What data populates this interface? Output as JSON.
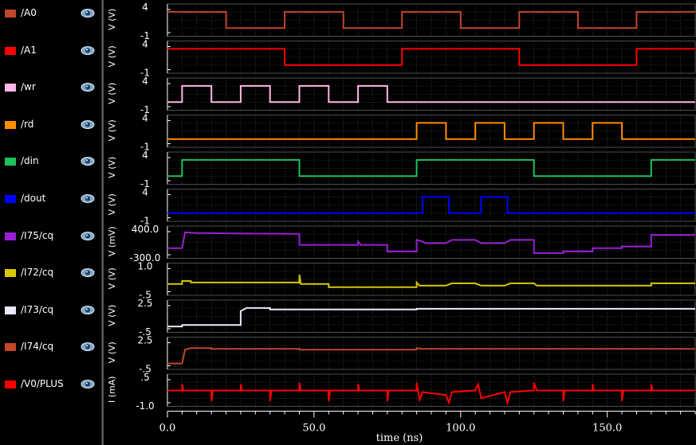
{
  "legend": [
    {
      "label": "/A0",
      "color": "#c0472a",
      "icon": "eye-icon"
    },
    {
      "label": "/A1",
      "color": "#ff0000",
      "icon": "eye-icon"
    },
    {
      "label": "/wr",
      "color": "#ffb6e8",
      "icon": "eye-icon"
    },
    {
      "label": "/rd",
      "color": "#ff8c00",
      "icon": "eye-icon"
    },
    {
      "label": "/din",
      "color": "#1fc25a",
      "icon": "eye-icon"
    },
    {
      "label": "/dout",
      "color": "#0000ff",
      "icon": "eye-icon"
    },
    {
      "label": "/I75/cq",
      "color": "#9a1fd2",
      "icon": "eye-icon"
    },
    {
      "label": "/I72/cq",
      "color": "#d8c800",
      "icon": "eye-icon"
    },
    {
      "label": "/I73/cq",
      "color": "#e8e8ff",
      "icon": "eye-icon"
    },
    {
      "label": "/I74/cq",
      "color": "#c0472a",
      "icon": "eye-icon"
    },
    {
      "label": "/V0/PLUS",
      "color": "#ff0000",
      "icon": "eye-icon"
    }
  ],
  "chart_data": {
    "type": "line",
    "xlabel": "time (ns)",
    "x_ticks": [
      "0.0",
      "50.0",
      "100.0",
      "150.0"
    ],
    "xlim": [
      0,
      180
    ],
    "grid": true,
    "series": [
      {
        "name": "/A0",
        "ylabel": "V (V)",
        "yticks": [
          "4",
          "-1"
        ],
        "ylim": [
          -1,
          4
        ],
        "color": "#c0472a",
        "points": [
          [
            0,
            3.5
          ],
          [
            20,
            3.5
          ],
          [
            20,
            0
          ],
          [
            40,
            0
          ],
          [
            40,
            3.5
          ],
          [
            60,
            3.5
          ],
          [
            60,
            0
          ],
          [
            80,
            0
          ],
          [
            80,
            3.5
          ],
          [
            100,
            3.5
          ],
          [
            100,
            0
          ],
          [
            120,
            0
          ],
          [
            120,
            3.5
          ],
          [
            140,
            3.5
          ],
          [
            140,
            0
          ],
          [
            160,
            0
          ],
          [
            160,
            3.5
          ],
          [
            180,
            3.5
          ]
        ]
      },
      {
        "name": "/A1",
        "ylabel": "V (V)",
        "yticks": [
          "4",
          "-1"
        ],
        "ylim": [
          -1,
          4
        ],
        "color": "#ff0000",
        "points": [
          [
            0,
            3.5
          ],
          [
            40,
            3.5
          ],
          [
            40,
            0
          ],
          [
            80,
            0
          ],
          [
            80,
            3.5
          ],
          [
            120,
            3.5
          ],
          [
            120,
            0
          ],
          [
            160,
            0
          ],
          [
            160,
            3.5
          ],
          [
            180,
            3.5
          ]
        ]
      },
      {
        "name": "/wr",
        "ylabel": "V (V)",
        "yticks": [
          "4",
          "-1"
        ],
        "ylim": [
          -1,
          4
        ],
        "color": "#ffb6e8",
        "points": [
          [
            0,
            0
          ],
          [
            5,
            0
          ],
          [
            5,
            3.5
          ],
          [
            15,
            3.5
          ],
          [
            15,
            0
          ],
          [
            25,
            0
          ],
          [
            25,
            3.5
          ],
          [
            35,
            3.5
          ],
          [
            35,
            0
          ],
          [
            45,
            0
          ],
          [
            45,
            3.5
          ],
          [
            55,
            3.5
          ],
          [
            55,
            0
          ],
          [
            65,
            0
          ],
          [
            65,
            3.5
          ],
          [
            75,
            3.5
          ],
          [
            75,
            0
          ],
          [
            180,
            0
          ]
        ]
      },
      {
        "name": "/rd",
        "ylabel": "V (V)",
        "yticks": [
          "4",
          "-1"
        ],
        "ylim": [
          -1,
          4
        ],
        "color": "#ff8c00",
        "points": [
          [
            0,
            0
          ],
          [
            85,
            0
          ],
          [
            85,
            3.5
          ],
          [
            95,
            3.5
          ],
          [
            95,
            0
          ],
          [
            105,
            0
          ],
          [
            105,
            3.5
          ],
          [
            115,
            3.5
          ],
          [
            115,
            0
          ],
          [
            125,
            0
          ],
          [
            125,
            3.5
          ],
          [
            135,
            3.5
          ],
          [
            135,
            0
          ],
          [
            145,
            0
          ],
          [
            145,
            3.5
          ],
          [
            155,
            3.5
          ],
          [
            155,
            0
          ],
          [
            180,
            0
          ]
        ]
      },
      {
        "name": "/din",
        "ylabel": "V (V)",
        "yticks": [
          "4",
          "-1"
        ],
        "ylim": [
          -1,
          4
        ],
        "color": "#1fc25a",
        "points": [
          [
            0,
            0
          ],
          [
            5,
            0
          ],
          [
            5,
            3.5
          ],
          [
            45,
            3.5
          ],
          [
            45,
            0
          ],
          [
            85,
            0
          ],
          [
            85,
            3.5
          ],
          [
            125,
            3.5
          ],
          [
            125,
            0
          ],
          [
            165,
            0
          ],
          [
            165,
            3.5
          ],
          [
            180,
            3.5
          ]
        ]
      },
      {
        "name": "/dout",
        "ylabel": "V (V)",
        "yticks": [
          "4",
          "-1"
        ],
        "ylim": [
          -1,
          4
        ],
        "color": "#0000ff",
        "points": [
          [
            0,
            0
          ],
          [
            87,
            0
          ],
          [
            87,
            3.5
          ],
          [
            96,
            3.5
          ],
          [
            96,
            0
          ],
          [
            107,
            0
          ],
          [
            107,
            3.5
          ],
          [
            116,
            3.5
          ],
          [
            116,
            0
          ],
          [
            180,
            0
          ]
        ]
      },
      {
        "name": "/I75/cq",
        "ylabel": "V (mV)",
        "yticks": [
          "400.0",
          "-300.0"
        ],
        "ylim": [
          -300,
          400
        ],
        "color": "#9a1fd2",
        "points": [
          [
            0,
            -100
          ],
          [
            5,
            -100
          ],
          [
            6,
            380
          ],
          [
            10,
            360
          ],
          [
            20,
            350
          ],
          [
            45,
            330
          ],
          [
            45,
            0
          ],
          [
            65,
            0
          ],
          [
            65,
            100
          ],
          [
            66,
            0
          ],
          [
            75,
            0
          ],
          [
            75,
            -200
          ],
          [
            85,
            -200
          ],
          [
            85,
            150
          ],
          [
            87,
            100
          ],
          [
            88,
            50
          ],
          [
            95,
            50
          ],
          [
            97,
            150
          ],
          [
            105,
            150
          ],
          [
            107,
            50
          ],
          [
            115,
            50
          ],
          [
            117,
            150
          ],
          [
            125,
            150
          ],
          [
            125,
            -250
          ],
          [
            135,
            -250
          ],
          [
            135,
            -200
          ],
          [
            145,
            -200
          ],
          [
            145,
            -100
          ],
          [
            155,
            -100
          ],
          [
            155,
            -50
          ],
          [
            165,
            -50
          ],
          [
            165,
            300
          ],
          [
            180,
            300
          ]
        ]
      },
      {
        "name": "/I72/cq",
        "ylabel": "V (V)",
        "yticks": [
          "1.0",
          "-.5"
        ],
        "ylim": [
          -0.5,
          1.0
        ],
        "color": "#d8c800",
        "points": [
          [
            0,
            0
          ],
          [
            5,
            0
          ],
          [
            5,
            0.2
          ],
          [
            8,
            0.2
          ],
          [
            8,
            0.1
          ],
          [
            45,
            0.1
          ],
          [
            45,
            0.6
          ],
          [
            45.5,
            0
          ],
          [
            55,
            0
          ],
          [
            55,
            -0.2
          ],
          [
            85,
            -0.2
          ],
          [
            85,
            0.1
          ],
          [
            86,
            -0.1
          ],
          [
            95,
            -0.1
          ],
          [
            97,
            0.05
          ],
          [
            105,
            0.05
          ],
          [
            107,
            -0.1
          ],
          [
            115,
            -0.1
          ],
          [
            117,
            0.05
          ],
          [
            125,
            0.05
          ],
          [
            126,
            -0.1
          ],
          [
            135,
            -0.1
          ],
          [
            145,
            -0.1
          ],
          [
            155,
            -0.1
          ],
          [
            165,
            -0.1
          ],
          [
            165,
            0.05
          ],
          [
            180,
            0.05
          ]
        ]
      },
      {
        "name": "/I73/cq",
        "ylabel": "V (V)",
        "yticks": [
          "2.5",
          "-.5"
        ],
        "ylim": [
          -0.5,
          2.5
        ],
        "color": "#e8e8ff",
        "points": [
          [
            0,
            -0.2
          ],
          [
            5,
            -0.2
          ],
          [
            5,
            0
          ],
          [
            25,
            0
          ],
          [
            25,
            1.8
          ],
          [
            27,
            2.2
          ],
          [
            35,
            2.2
          ],
          [
            35,
            2.0
          ],
          [
            45,
            2.0
          ],
          [
            85,
            2.0
          ],
          [
            85,
            2.1
          ],
          [
            125,
            2.1
          ],
          [
            165,
            2.1
          ],
          [
            180,
            2.1
          ]
        ]
      },
      {
        "name": "/I74/cq",
        "ylabel": "V (V)",
        "yticks": [
          "2.5",
          "-.5"
        ],
        "ylim": [
          -0.5,
          2.5
        ],
        "color": "#c0472a",
        "points": [
          [
            0,
            -0.2
          ],
          [
            5,
            -0.2
          ],
          [
            6,
            1.6
          ],
          [
            8,
            1.8
          ],
          [
            15,
            1.8
          ],
          [
            15,
            1.7
          ],
          [
            45,
            1.7
          ],
          [
            45,
            1.6
          ],
          [
            85,
            1.6
          ],
          [
            85,
            1.8
          ],
          [
            87,
            1.7
          ],
          [
            125,
            1.7
          ],
          [
            180,
            1.7
          ]
        ]
      },
      {
        "name": "/V0/PLUS",
        "ylabel": "I (mA)",
        "yticks": [
          ".5",
          "-1.0"
        ],
        "ylim": [
          -1.0,
          0.5
        ],
        "color": "#ff0000",
        "points": [
          [
            0,
            -0.2
          ],
          [
            5,
            -0.2
          ],
          [
            5,
            0.2
          ],
          [
            5.5,
            -0.2
          ],
          [
            15,
            -0.2
          ],
          [
            15,
            -0.9
          ],
          [
            15.5,
            -0.2
          ],
          [
            25,
            -0.2
          ],
          [
            25,
            0.2
          ],
          [
            25.5,
            -0.2
          ],
          [
            35,
            -0.2
          ],
          [
            35,
            -0.9
          ],
          [
            35.5,
            -0.2
          ],
          [
            45,
            -0.2
          ],
          [
            45,
            0.3
          ],
          [
            45.5,
            -0.2
          ],
          [
            55,
            -0.2
          ],
          [
            55,
            -0.9
          ],
          [
            55.5,
            -0.2
          ],
          [
            65,
            -0.2
          ],
          [
            65,
            0.2
          ],
          [
            65.5,
            -0.2
          ],
          [
            75,
            -0.2
          ],
          [
            75,
            -0.9
          ],
          [
            75.5,
            -0.2
          ],
          [
            85,
            -0.2
          ],
          [
            85,
            0.3
          ],
          [
            86,
            -0.8
          ],
          [
            87,
            -0.3
          ],
          [
            95,
            -0.5
          ],
          [
            96,
            -1.0
          ],
          [
            97,
            -0.3
          ],
          [
            105,
            -0.2
          ],
          [
            106,
            0.2
          ],
          [
            107,
            -0.7
          ],
          [
            115,
            -0.3
          ],
          [
            116,
            -1.0
          ],
          [
            117,
            -0.3
          ],
          [
            125,
            -0.2
          ],
          [
            125,
            0.3
          ],
          [
            126,
            -0.2
          ],
          [
            135,
            -0.2
          ],
          [
            135,
            -0.9
          ],
          [
            135.5,
            -0.2
          ],
          [
            145,
            -0.2
          ],
          [
            145,
            0.2
          ],
          [
            145.5,
            -0.2
          ],
          [
            155,
            -0.2
          ],
          [
            155,
            -0.9
          ],
          [
            155.5,
            -0.2
          ],
          [
            165,
            -0.2
          ],
          [
            165,
            0.2
          ],
          [
            165.5,
            -0.2
          ],
          [
            180,
            -0.2
          ]
        ]
      }
    ]
  }
}
